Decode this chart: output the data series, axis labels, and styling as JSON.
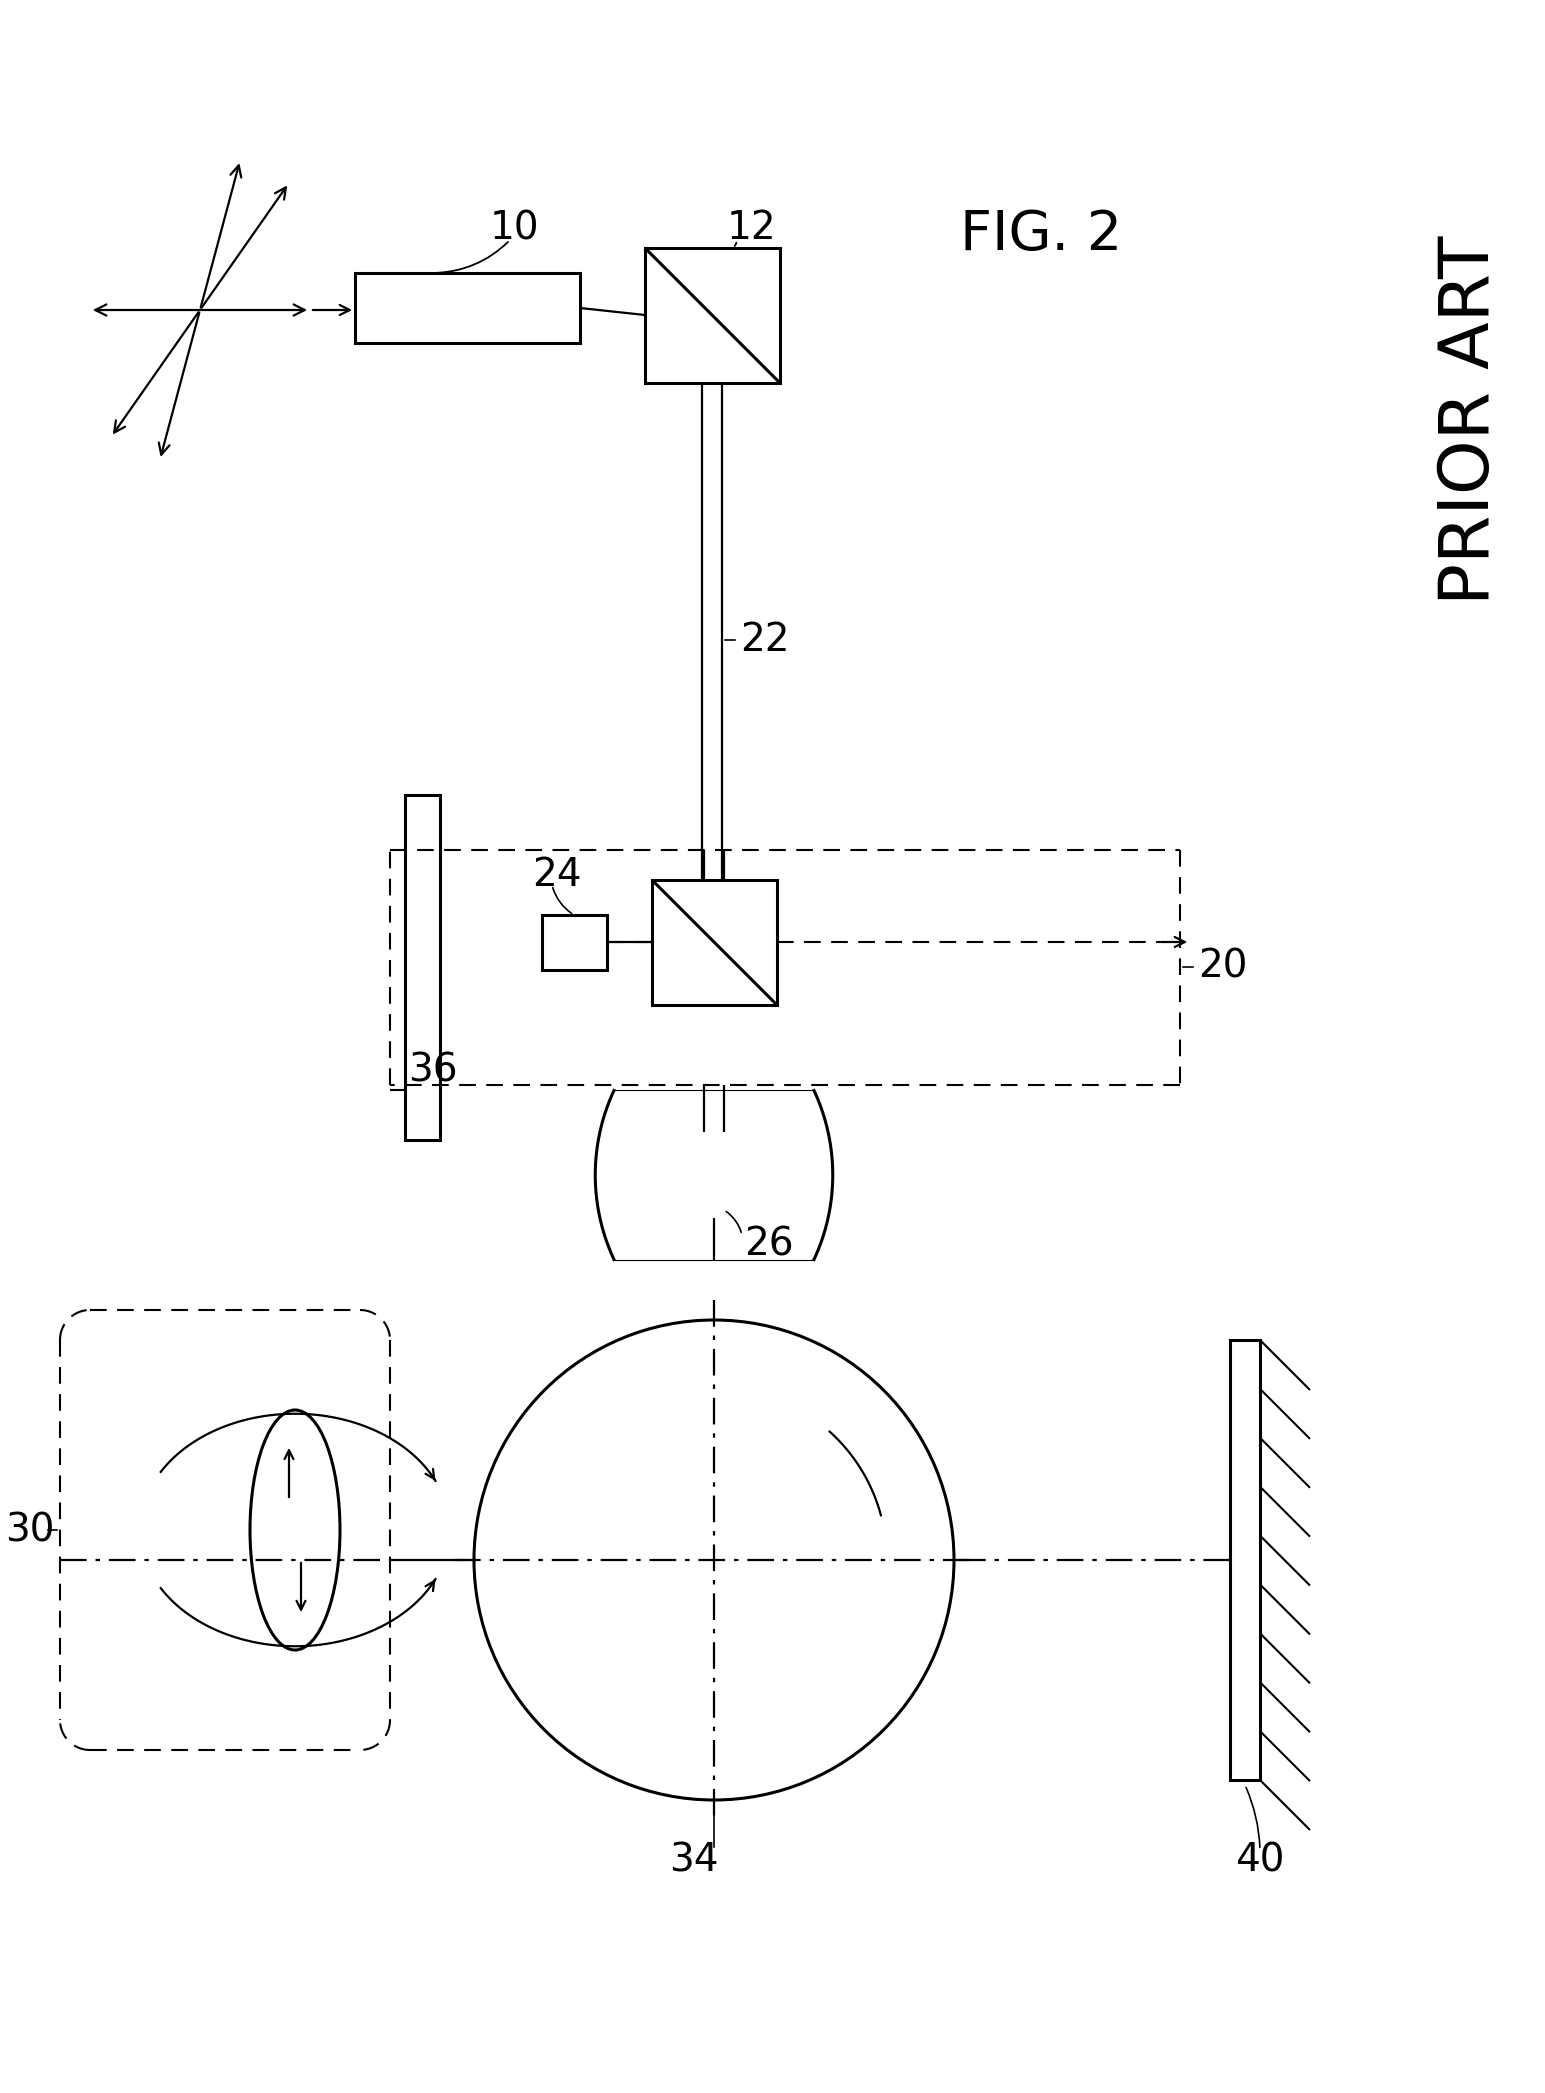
{
  "bg_color": "#ffffff",
  "line_color": "#000000",
  "fig2_label": "FIG. 2",
  "prior_art_label": "PRIOR ART",
  "lw_main": 2.2,
  "lw_thin": 1.6,
  "lw_dash": 1.5
}
